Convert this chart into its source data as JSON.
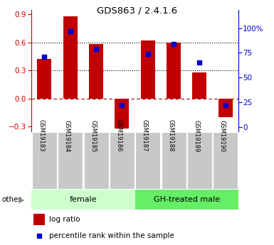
{
  "title": "GDS863 / 2.4.1.6",
  "samples": [
    "GSM19183",
    "GSM19184",
    "GSM19185",
    "GSM19186",
    "GSM19187",
    "GSM19188",
    "GSM19189",
    "GSM19190"
  ],
  "log_ratio": [
    0.42,
    0.88,
    0.58,
    -0.32,
    0.62,
    0.6,
    0.28,
    -0.2
  ],
  "percentile_rank": [
    71,
    97,
    79,
    22,
    74,
    84,
    65,
    22
  ],
  "bar_color": "#c00000",
  "dot_color": "#0000cc",
  "ylim_left": [
    -0.35,
    0.95
  ],
  "ylim_right": [
    -4.375,
    118.75
  ],
  "yticks_left": [
    -0.3,
    0.0,
    0.3,
    0.6,
    0.9
  ],
  "yticks_right": [
    0,
    25,
    50,
    75,
    100
  ],
  "ytick_labels_right": [
    "0",
    "25",
    "50",
    "75",
    "100%"
  ],
  "hlines": [
    0.3,
    0.6
  ],
  "female_samples": [
    0,
    1,
    2,
    3
  ],
  "male_samples": [
    4,
    5,
    6,
    7
  ],
  "female_label": "female",
  "male_label": "GH-treated male",
  "female_color": "#ccffcc",
  "male_color": "#66ee66",
  "other_label": "other",
  "legend_log_ratio": "log ratio",
  "legend_percentile": "percentile rank within the sample",
  "bg_color": "#ffffff",
  "tick_area_color": "#c8c8c8",
  "left_axis_color": "#cc0000",
  "right_axis_color": "#0000cc"
}
